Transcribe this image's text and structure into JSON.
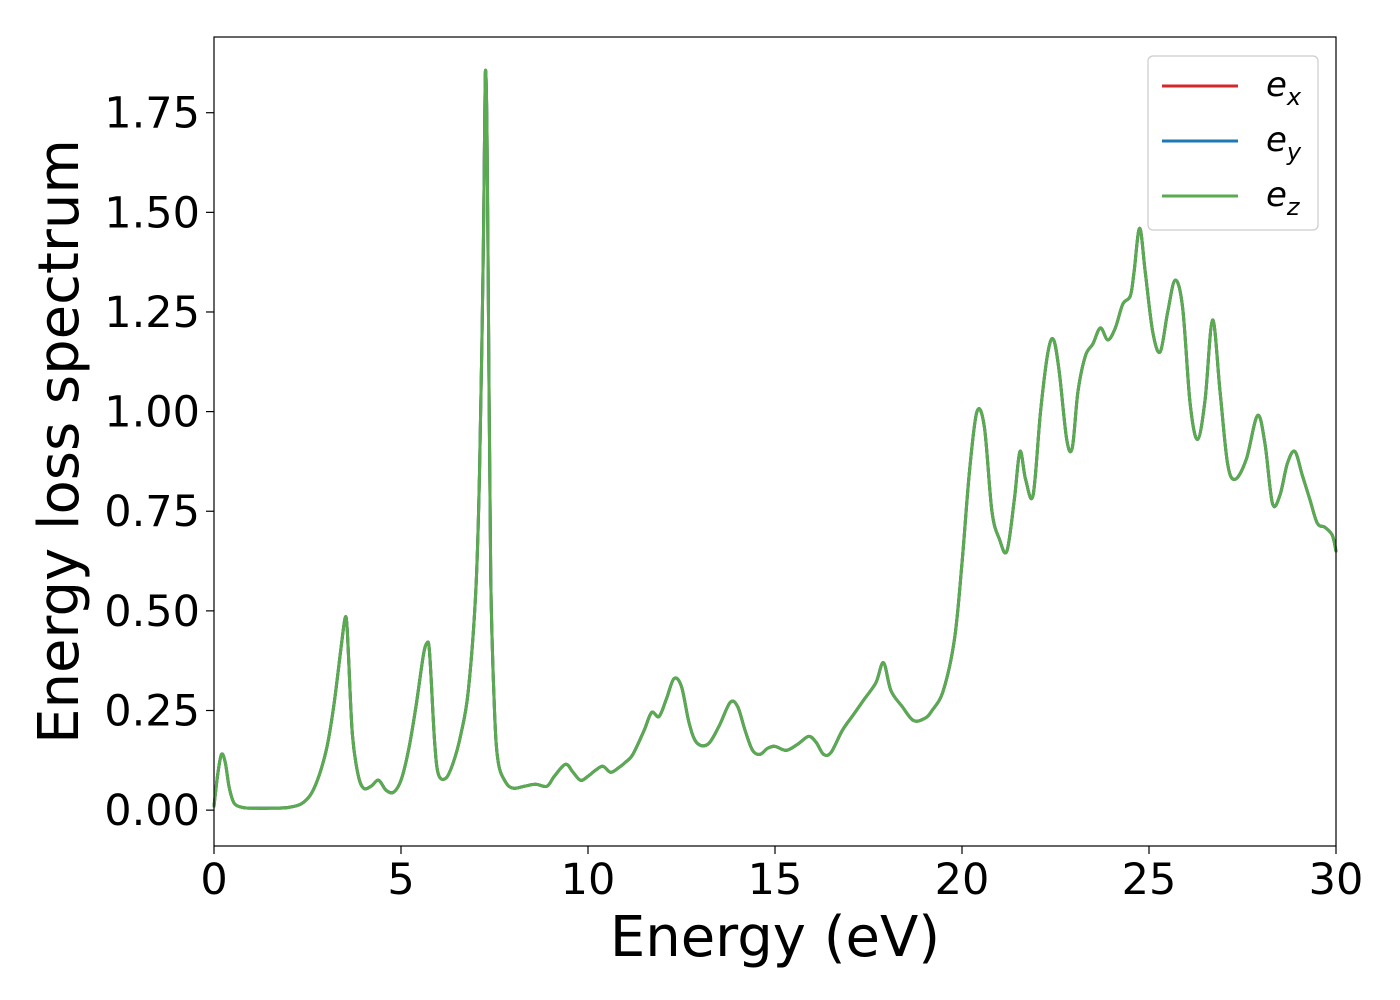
{
  "chart_data": {
    "type": "line",
    "title": "",
    "xlabel": "Energy (eV)",
    "ylabel": "Energy loss spectrum",
    "xlim": [
      0,
      30
    ],
    "ylim": [
      -0.09,
      1.94
    ],
    "grid": false,
    "legend_position": "top-right",
    "x_ticks": [
      0,
      5,
      10,
      15,
      20,
      25,
      30
    ],
    "x_tick_labels": [
      "0",
      "5",
      "10",
      "15",
      "20",
      "25",
      "30"
    ],
    "y_ticks": [
      0.0,
      0.25,
      0.5,
      0.75,
      1.0,
      1.25,
      1.5,
      1.75
    ],
    "y_tick_labels": [
      "0.00",
      "0.25",
      "0.50",
      "0.75",
      "1.00",
      "1.25",
      "1.50",
      "1.75"
    ],
    "x": [
      0.0,
      0.1,
      0.2,
      0.3,
      0.4,
      0.5,
      0.6,
      0.8,
      1.0,
      1.5,
      2.0,
      2.4,
      2.7,
      3.0,
      3.2,
      3.4,
      3.5,
      3.55,
      3.6,
      3.7,
      3.85,
      4.0,
      4.2,
      4.4,
      4.6,
      4.8,
      5.0,
      5.2,
      5.4,
      5.6,
      5.7,
      5.75,
      5.8,
      5.9,
      6.0,
      6.2,
      6.4,
      6.6,
      6.8,
      7.0,
      7.1,
      7.2,
      7.25,
      7.3,
      7.35,
      7.4,
      7.5,
      7.6,
      7.8,
      8.0,
      8.3,
      8.6,
      8.9,
      9.1,
      9.4,
      9.6,
      9.8,
      10.0,
      10.2,
      10.4,
      10.6,
      10.8,
      11.0,
      11.2,
      11.5,
      11.7,
      11.9,
      12.1,
      12.3,
      12.5,
      12.7,
      12.9,
      13.2,
      13.5,
      13.8,
      14.0,
      14.2,
      14.4,
      14.6,
      14.8,
      15.0,
      15.3,
      15.6,
      15.9,
      16.1,
      16.3,
      16.5,
      16.8,
      17.1,
      17.4,
      17.7,
      17.9,
      18.1,
      18.4,
      18.7,
      19.0,
      19.2,
      19.5,
      19.8,
      20.0,
      20.2,
      20.4,
      20.6,
      20.8,
      21.0,
      21.2,
      21.4,
      21.55,
      21.7,
      21.9,
      22.1,
      22.3,
      22.45,
      22.6,
      22.8,
      22.95,
      23.1,
      23.3,
      23.5,
      23.7,
      23.9,
      24.1,
      24.3,
      24.5,
      24.6,
      24.75,
      24.9,
      25.1,
      25.3,
      25.5,
      25.7,
      25.9,
      26.1,
      26.3,
      26.5,
      26.7,
      26.9,
      27.1,
      27.3,
      27.6,
      27.9,
      28.1,
      28.3,
      28.5,
      28.7,
      28.9,
      29.1,
      29.3,
      29.5,
      29.7,
      29.9,
      30.0
    ],
    "series": [
      {
        "name": "e_x",
        "color": "#d62728",
        "values": [
          0.01,
          0.09,
          0.14,
          0.12,
          0.06,
          0.025,
          0.012,
          0.006,
          0.005,
          0.005,
          0.007,
          0.02,
          0.06,
          0.15,
          0.26,
          0.41,
          0.48,
          0.47,
          0.38,
          0.19,
          0.09,
          0.055,
          0.06,
          0.075,
          0.05,
          0.045,
          0.075,
          0.15,
          0.26,
          0.39,
          0.42,
          0.41,
          0.34,
          0.17,
          0.09,
          0.08,
          0.12,
          0.19,
          0.3,
          0.55,
          0.85,
          1.4,
          1.84,
          1.7,
          1.1,
          0.58,
          0.25,
          0.12,
          0.07,
          0.055,
          0.06,
          0.065,
          0.06,
          0.085,
          0.115,
          0.095,
          0.075,
          0.085,
          0.1,
          0.11,
          0.095,
          0.105,
          0.12,
          0.14,
          0.2,
          0.245,
          0.235,
          0.28,
          0.33,
          0.31,
          0.22,
          0.17,
          0.165,
          0.21,
          0.27,
          0.26,
          0.2,
          0.15,
          0.14,
          0.155,
          0.16,
          0.15,
          0.165,
          0.185,
          0.17,
          0.14,
          0.145,
          0.2,
          0.24,
          0.28,
          0.32,
          0.37,
          0.3,
          0.26,
          0.225,
          0.23,
          0.25,
          0.3,
          0.43,
          0.62,
          0.85,
          1.0,
          0.96,
          0.75,
          0.68,
          0.65,
          0.78,
          0.9,
          0.83,
          0.79,
          1.0,
          1.15,
          1.18,
          1.1,
          0.93,
          0.91,
          1.05,
          1.14,
          1.17,
          1.21,
          1.18,
          1.21,
          1.27,
          1.29,
          1.35,
          1.46,
          1.35,
          1.2,
          1.15,
          1.25,
          1.33,
          1.26,
          1.02,
          0.93,
          1.03,
          1.23,
          1.05,
          0.87,
          0.83,
          0.88,
          0.99,
          0.92,
          0.77,
          0.79,
          0.87,
          0.9,
          0.84,
          0.78,
          0.72,
          0.71,
          0.69,
          0.65
        ]
      },
      {
        "name": "e_y",
        "color": "#1f77b4",
        "values": [
          0.01,
          0.09,
          0.14,
          0.12,
          0.06,
          0.025,
          0.012,
          0.006,
          0.005,
          0.005,
          0.007,
          0.02,
          0.06,
          0.15,
          0.26,
          0.41,
          0.48,
          0.47,
          0.38,
          0.19,
          0.09,
          0.055,
          0.06,
          0.075,
          0.05,
          0.045,
          0.075,
          0.15,
          0.26,
          0.39,
          0.42,
          0.41,
          0.34,
          0.17,
          0.09,
          0.08,
          0.12,
          0.19,
          0.3,
          0.55,
          0.85,
          1.4,
          1.84,
          1.7,
          1.1,
          0.58,
          0.25,
          0.12,
          0.07,
          0.055,
          0.06,
          0.065,
          0.06,
          0.085,
          0.115,
          0.095,
          0.075,
          0.085,
          0.1,
          0.11,
          0.095,
          0.105,
          0.12,
          0.14,
          0.2,
          0.245,
          0.235,
          0.28,
          0.33,
          0.31,
          0.22,
          0.17,
          0.165,
          0.21,
          0.27,
          0.26,
          0.2,
          0.15,
          0.14,
          0.155,
          0.16,
          0.15,
          0.165,
          0.185,
          0.17,
          0.14,
          0.145,
          0.2,
          0.24,
          0.28,
          0.32,
          0.37,
          0.3,
          0.26,
          0.225,
          0.23,
          0.25,
          0.3,
          0.43,
          0.62,
          0.85,
          1.0,
          0.96,
          0.75,
          0.68,
          0.65,
          0.78,
          0.9,
          0.83,
          0.79,
          1.0,
          1.15,
          1.18,
          1.1,
          0.93,
          0.91,
          1.05,
          1.14,
          1.17,
          1.21,
          1.18,
          1.21,
          1.27,
          1.29,
          1.35,
          1.46,
          1.35,
          1.2,
          1.15,
          1.25,
          1.33,
          1.26,
          1.02,
          0.93,
          1.03,
          1.23,
          1.05,
          0.87,
          0.83,
          0.88,
          0.99,
          0.92,
          0.77,
          0.79,
          0.87,
          0.9,
          0.84,
          0.78,
          0.72,
          0.71,
          0.69,
          0.65
        ]
      },
      {
        "name": "e_z",
        "color": "#5aaa50",
        "values": [
          0.01,
          0.09,
          0.14,
          0.12,
          0.06,
          0.025,
          0.012,
          0.006,
          0.005,
          0.005,
          0.007,
          0.02,
          0.06,
          0.15,
          0.26,
          0.41,
          0.48,
          0.47,
          0.38,
          0.19,
          0.09,
          0.055,
          0.06,
          0.075,
          0.05,
          0.045,
          0.075,
          0.15,
          0.26,
          0.39,
          0.42,
          0.41,
          0.34,
          0.17,
          0.09,
          0.08,
          0.12,
          0.19,
          0.3,
          0.55,
          0.85,
          1.4,
          1.84,
          1.7,
          1.1,
          0.58,
          0.25,
          0.12,
          0.07,
          0.055,
          0.06,
          0.065,
          0.06,
          0.085,
          0.115,
          0.095,
          0.075,
          0.085,
          0.1,
          0.11,
          0.095,
          0.105,
          0.12,
          0.14,
          0.2,
          0.245,
          0.235,
          0.28,
          0.33,
          0.31,
          0.22,
          0.17,
          0.165,
          0.21,
          0.27,
          0.26,
          0.2,
          0.15,
          0.14,
          0.155,
          0.16,
          0.15,
          0.165,
          0.185,
          0.17,
          0.14,
          0.145,
          0.2,
          0.24,
          0.28,
          0.32,
          0.37,
          0.3,
          0.26,
          0.225,
          0.23,
          0.25,
          0.3,
          0.43,
          0.62,
          0.85,
          1.0,
          0.96,
          0.75,
          0.68,
          0.65,
          0.78,
          0.9,
          0.83,
          0.79,
          1.0,
          1.15,
          1.18,
          1.1,
          0.93,
          0.91,
          1.05,
          1.14,
          1.17,
          1.21,
          1.18,
          1.21,
          1.27,
          1.29,
          1.35,
          1.46,
          1.35,
          1.2,
          1.15,
          1.25,
          1.33,
          1.26,
          1.02,
          0.93,
          1.03,
          1.23,
          1.05,
          0.87,
          0.83,
          0.88,
          0.99,
          0.92,
          0.77,
          0.79,
          0.87,
          0.9,
          0.84,
          0.78,
          0.72,
          0.71,
          0.69,
          0.65
        ]
      }
    ],
    "legend": [
      {
        "base": "e",
        "sub": "x"
      },
      {
        "base": "e",
        "sub": "y"
      },
      {
        "base": "e",
        "sub": "z"
      }
    ]
  }
}
